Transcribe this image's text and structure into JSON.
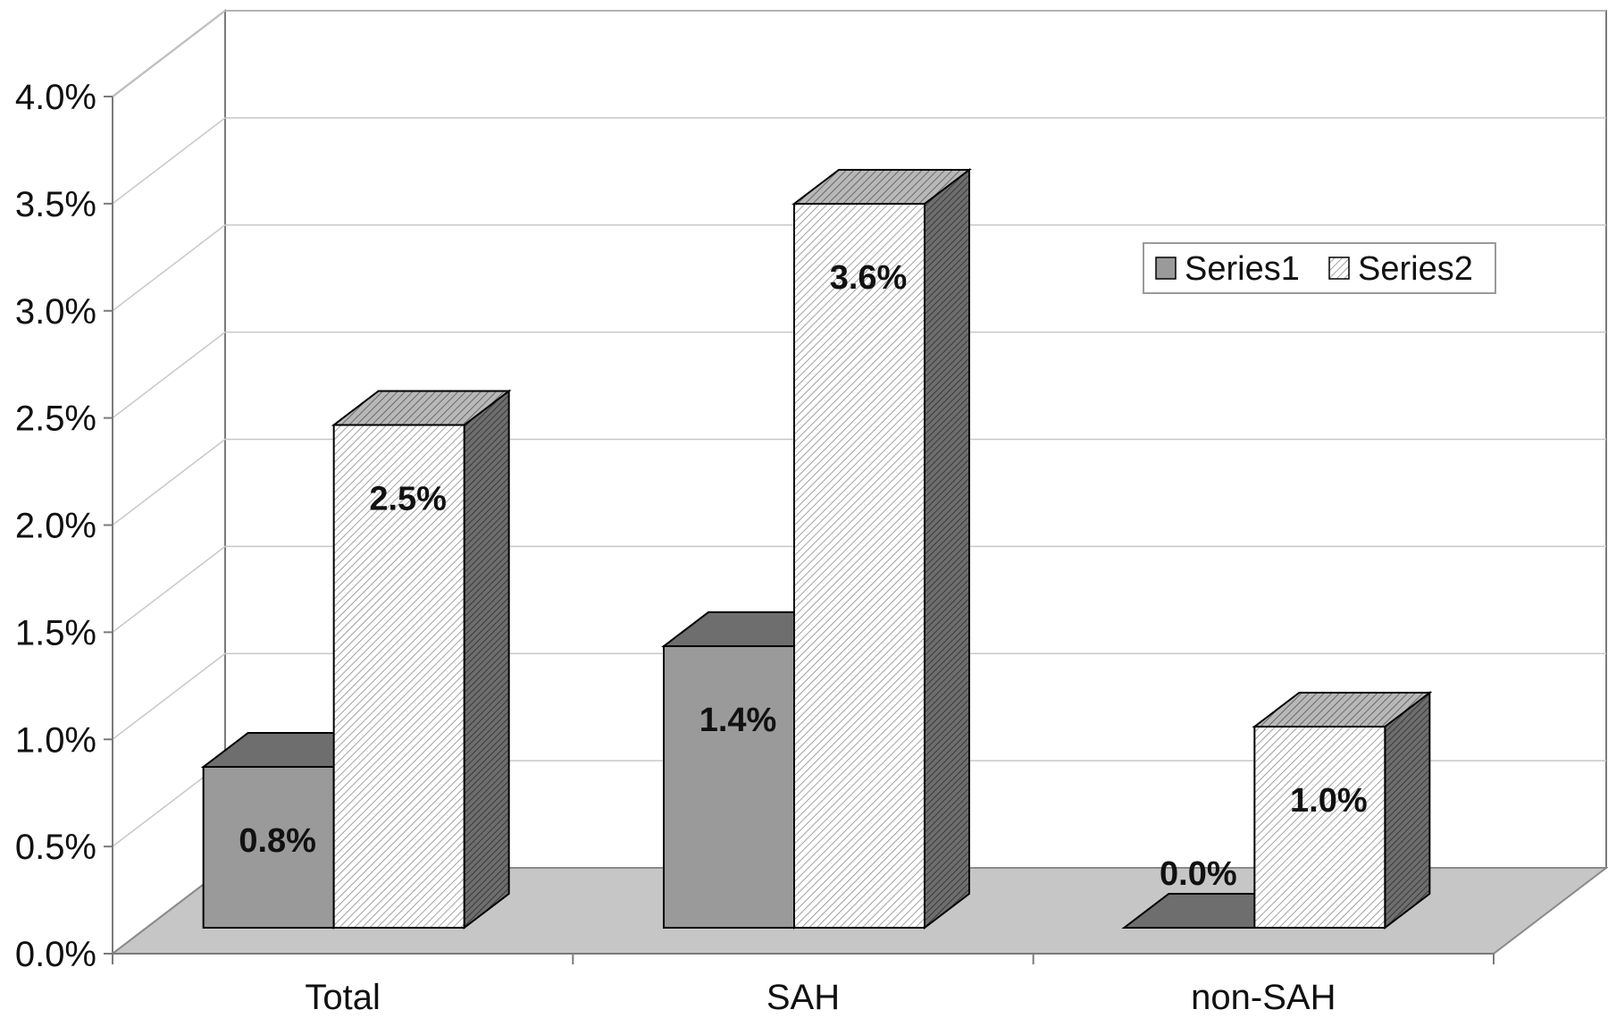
{
  "chart_data": {
    "type": "bar",
    "style": "3d-clustered-column",
    "categories": [
      "Total",
      "SAH",
      "non-SAH"
    ],
    "series": [
      {
        "name": "Series1",
        "values": [
          0.008,
          0.014,
          0.0
        ],
        "labels": [
          "0.8%",
          "1.4%",
          "0.0%"
        ],
        "color": "#9a9a9a",
        "pattern": "solid"
      },
      {
        "name": "Series2",
        "values": [
          0.025,
          0.036,
          0.01
        ],
        "labels": [
          "2.5%",
          "3.6%",
          "1.0%"
        ],
        "color": "#ffffff",
        "pattern": "diagonal-hatch"
      }
    ],
    "yticks": [
      "0.0%",
      "0.5%",
      "1.0%",
      "1.5%",
      "2.0%",
      "2.5%",
      "3.0%",
      "3.5%",
      "4.0%"
    ],
    "ylim": [
      0,
      0.04
    ],
    "grid": true,
    "legend_position": "upper-right"
  }
}
